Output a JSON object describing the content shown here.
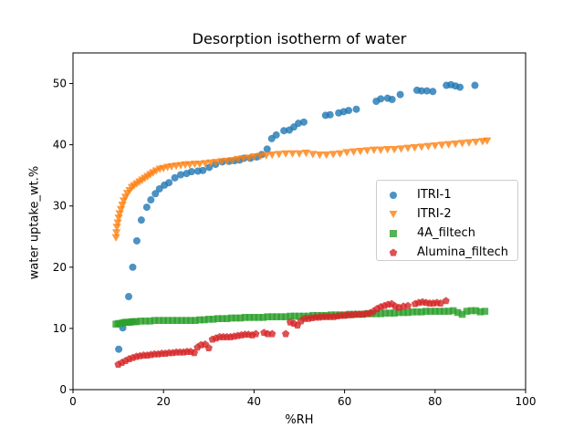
{
  "chart_data": {
    "type": "scatter",
    "title": "Desorption isotherm of water",
    "xlabel": "%RH",
    "ylabel": "water uptake_wt.%",
    "xlim": [
      0,
      100
    ],
    "ylim": [
      0,
      55
    ],
    "xticks": [
      "0",
      "20",
      "40",
      "60",
      "80",
      "100"
    ],
    "yticks": [
      "0",
      "10",
      "20",
      "30",
      "40",
      "50"
    ],
    "grid": false,
    "legend_position": "center-right",
    "series": [
      {
        "name": "ITRI-1",
        "color": "#1f77b4",
        "marker": "circle",
        "points": [
          [
            10.1,
            6.6
          ],
          [
            11,
            10.1
          ],
          [
            12.3,
            15.2
          ],
          [
            13.2,
            20
          ],
          [
            14.1,
            24.3
          ],
          [
            15.1,
            27.7
          ],
          [
            16.3,
            29.8
          ],
          [
            17.2,
            31
          ],
          [
            18.2,
            32
          ],
          [
            19.1,
            32.8
          ],
          [
            20.2,
            33.4
          ],
          [
            21.2,
            33.8
          ],
          [
            22.5,
            34.6
          ],
          [
            23.8,
            35.1
          ],
          [
            25.1,
            35.3
          ],
          [
            26.2,
            35.6
          ],
          [
            27.6,
            35.7
          ],
          [
            28.7,
            35.8
          ],
          [
            30.1,
            36.3
          ],
          [
            31.5,
            36.8
          ],
          [
            33,
            37.2
          ],
          [
            34.5,
            37.3
          ],
          [
            35.7,
            37.4
          ],
          [
            36.8,
            37.5
          ],
          [
            37.8,
            37.8
          ],
          [
            39.2,
            37.8
          ],
          [
            40.6,
            38
          ],
          [
            41.7,
            38.4
          ],
          [
            42.9,
            39.3
          ],
          [
            43.9,
            41
          ],
          [
            44.9,
            41.6
          ],
          [
            46.6,
            42.3
          ],
          [
            47.8,
            42.4
          ],
          [
            48.8,
            42.9
          ],
          [
            49.8,
            43.5
          ],
          [
            51,
            43.7
          ],
          [
            55.8,
            44.8
          ],
          [
            56.8,
            44.9
          ],
          [
            58.7,
            45.2
          ],
          [
            59.8,
            45.4
          ],
          [
            60.9,
            45.6
          ],
          [
            62.6,
            45.8
          ],
          [
            67,
            47.1
          ],
          [
            68,
            47.5
          ],
          [
            69.5,
            47.6
          ],
          [
            70.5,
            47.4
          ],
          [
            72.3,
            48.2
          ],
          [
            76,
            48.9
          ],
          [
            77,
            48.8
          ],
          [
            78.2,
            48.8
          ],
          [
            79.5,
            48.7
          ],
          [
            82.5,
            49.7
          ],
          [
            83.5,
            49.8
          ],
          [
            84.5,
            49.6
          ],
          [
            85.5,
            49.4
          ],
          [
            88.8,
            49.7
          ]
        ]
      },
      {
        "name": "ITRI-2",
        "color": "#ff7f0e",
        "marker": "triangle-down",
        "points": [
          [
            9.5,
            24.8
          ],
          [
            9.6,
            25.6
          ],
          [
            9.7,
            26.5
          ],
          [
            9.9,
            27.2
          ],
          [
            10.1,
            28
          ],
          [
            10.3,
            28.7
          ],
          [
            10.6,
            29.4
          ],
          [
            10.9,
            30.1
          ],
          [
            11.2,
            30.8
          ],
          [
            11.6,
            31.4
          ],
          [
            12,
            32
          ],
          [
            12.5,
            32.5
          ],
          [
            13,
            33
          ],
          [
            13.5,
            33.3
          ],
          [
            14.1,
            33.6
          ],
          [
            14.7,
            33.9
          ],
          [
            15.3,
            34.2
          ],
          [
            15.9,
            34.5
          ],
          [
            16.5,
            34.8
          ],
          [
            17.1,
            35.1
          ],
          [
            17.7,
            35.4
          ],
          [
            18.4,
            35.7
          ],
          [
            19.2,
            36
          ],
          [
            20,
            36.1
          ],
          [
            20.9,
            36.3
          ],
          [
            21.8,
            36.4
          ],
          [
            22.8,
            36.5
          ],
          [
            23.8,
            36.6
          ],
          [
            24.8,
            36.7
          ],
          [
            25.8,
            36.7
          ],
          [
            26.9,
            36.8
          ],
          [
            28,
            36.8
          ],
          [
            29.2,
            36.9
          ],
          [
            30.4,
            37
          ],
          [
            31.6,
            37.1
          ],
          [
            32.8,
            37.2
          ],
          [
            34,
            37.3
          ],
          [
            35.2,
            37.4
          ],
          [
            36.4,
            37.6
          ],
          [
            37.6,
            37.7
          ],
          [
            38.8,
            37.8
          ],
          [
            40,
            38
          ],
          [
            41.4,
            38.1
          ],
          [
            42.7,
            38.2
          ],
          [
            44,
            38.3
          ],
          [
            45.5,
            38.4
          ],
          [
            47,
            38.5
          ],
          [
            48.5,
            38.5
          ],
          [
            50,
            38.5
          ],
          [
            51.5,
            38.6
          ],
          [
            53,
            38.4
          ],
          [
            54.5,
            38.3
          ],
          [
            56,
            38.3
          ],
          [
            57.5,
            38.4
          ],
          [
            59,
            38.5
          ],
          [
            60.5,
            38.7
          ],
          [
            62,
            38.8
          ],
          [
            63.5,
            38.9
          ],
          [
            65,
            39
          ],
          [
            66.5,
            39.1
          ],
          [
            68,
            39.1
          ],
          [
            69.5,
            39.2
          ],
          [
            71,
            39.2
          ],
          [
            72.5,
            39.3
          ],
          [
            74,
            39.4
          ],
          [
            75.5,
            39.5
          ],
          [
            77,
            39.6
          ],
          [
            78.5,
            39.7
          ],
          [
            80,
            39.8
          ],
          [
            81.5,
            39.9
          ],
          [
            83,
            40
          ],
          [
            84.5,
            40.1
          ],
          [
            86,
            40.2
          ],
          [
            87.5,
            40.3
          ],
          [
            89,
            40.4
          ],
          [
            90.5,
            40.5
          ],
          [
            91.5,
            40.6
          ]
        ]
      },
      {
        "name": "4A_filtech",
        "color": "#2ca02c",
        "marker": "square",
        "points": [
          [
            9.5,
            10.7
          ],
          [
            10,
            10.8
          ],
          [
            10.5,
            10.8
          ],
          [
            11,
            10.9
          ],
          [
            11.5,
            11
          ],
          [
            12,
            11
          ],
          [
            12.5,
            11
          ],
          [
            13,
            11.1
          ],
          [
            13.5,
            11.1
          ],
          [
            14,
            11.1
          ],
          [
            15,
            11.2
          ],
          [
            16,
            11.2
          ],
          [
            17,
            11.2
          ],
          [
            18,
            11.3
          ],
          [
            19,
            11.3
          ],
          [
            20,
            11.3
          ],
          [
            21,
            11.3
          ],
          [
            22,
            11.3
          ],
          [
            23,
            11.3
          ],
          [
            24,
            11.3
          ],
          [
            25,
            11.3
          ],
          [
            26,
            11.3
          ],
          [
            27,
            11.3
          ],
          [
            28,
            11.4
          ],
          [
            29,
            11.4
          ],
          [
            30,
            11.5
          ],
          [
            31,
            11.5
          ],
          [
            32,
            11.6
          ],
          [
            33,
            11.6
          ],
          [
            34,
            11.6
          ],
          [
            35,
            11.7
          ],
          [
            36,
            11.7
          ],
          [
            37,
            11.7
          ],
          [
            38,
            11.8
          ],
          [
            39,
            11.8
          ],
          [
            40,
            11.8
          ],
          [
            41,
            11.8
          ],
          [
            42,
            11.8
          ],
          [
            43,
            11.9
          ],
          [
            44,
            11.9
          ],
          [
            45,
            11.9
          ],
          [
            46,
            11.9
          ],
          [
            47,
            11.9
          ],
          [
            48,
            12
          ],
          [
            49,
            12
          ],
          [
            50,
            12
          ],
          [
            51,
            12
          ],
          [
            52,
            12
          ],
          [
            53,
            12.1
          ],
          [
            54,
            12.1
          ],
          [
            55,
            12.1
          ],
          [
            56,
            12.1
          ],
          [
            57,
            12.2
          ],
          [
            58,
            12.2
          ],
          [
            59,
            12.2
          ],
          [
            60,
            12.2
          ],
          [
            61,
            12.3
          ],
          [
            62,
            12.3
          ],
          [
            63,
            12.3
          ],
          [
            64,
            12.3
          ],
          [
            65,
            12.4
          ],
          [
            66,
            12.4
          ],
          [
            67,
            12.4
          ],
          [
            68,
            12.4
          ],
          [
            69,
            12.5
          ],
          [
            70,
            12.5
          ],
          [
            71,
            12.5
          ],
          [
            72,
            12.6
          ],
          [
            73,
            12.6
          ],
          [
            74,
            12.6
          ],
          [
            75,
            12.7
          ],
          [
            76,
            12.7
          ],
          [
            77,
            12.7
          ],
          [
            78,
            12.8
          ],
          [
            79,
            12.8
          ],
          [
            80,
            12.8
          ],
          [
            81,
            12.8
          ],
          [
            82,
            12.8
          ],
          [
            83,
            12.8
          ],
          [
            84,
            12.9
          ],
          [
            85,
            12.6
          ],
          [
            86,
            12.3
          ],
          [
            87,
            12.8
          ],
          [
            88,
            12.9
          ],
          [
            89,
            12.9
          ],
          [
            90,
            12.7
          ],
          [
            91,
            12.8
          ]
        ]
      },
      {
        "name": "Alumina_filtech",
        "color": "#d62728",
        "marker": "pentagon",
        "points": [
          [
            10,
            4.1
          ],
          [
            10.8,
            4.4
          ],
          [
            11.6,
            4.7
          ],
          [
            12.4,
            5
          ],
          [
            13.2,
            5.2
          ],
          [
            14,
            5.4
          ],
          [
            14.8,
            5.5
          ],
          [
            15.6,
            5.6
          ],
          [
            16.4,
            5.6
          ],
          [
            17.2,
            5.7
          ],
          [
            18,
            5.8
          ],
          [
            18.8,
            5.8
          ],
          [
            19.6,
            5.9
          ],
          [
            20.4,
            5.9
          ],
          [
            21.2,
            6
          ],
          [
            22,
            6
          ],
          [
            22.8,
            6.1
          ],
          [
            23.6,
            6.1
          ],
          [
            24.4,
            6.1
          ],
          [
            25.2,
            6.2
          ],
          [
            26,
            6.2
          ],
          [
            26.8,
            6
          ],
          [
            27.5,
            6.9
          ],
          [
            28.3,
            7.3
          ],
          [
            29.2,
            7.4
          ],
          [
            30,
            6.8
          ],
          [
            30.8,
            8.2
          ],
          [
            31.6,
            8.4
          ],
          [
            32.4,
            8.6
          ],
          [
            33.2,
            8.6
          ],
          [
            34,
            8.6
          ],
          [
            34.8,
            8.6
          ],
          [
            35.6,
            8.7
          ],
          [
            36.4,
            8.8
          ],
          [
            37.2,
            8.9
          ],
          [
            38,
            9
          ],
          [
            38.8,
            9
          ],
          [
            39.6,
            8.9
          ],
          [
            40.4,
            9.1
          ],
          [
            42.2,
            9.3
          ],
          [
            43,
            9.1
          ],
          [
            44,
            9.1
          ],
          [
            47,
            9.1
          ],
          [
            48,
            11
          ],
          [
            48.8,
            10.8
          ],
          [
            49.6,
            10.5
          ],
          [
            50.4,
            11.2
          ],
          [
            51.2,
            11.6
          ],
          [
            52,
            11.6
          ],
          [
            52.8,
            11.7
          ],
          [
            53.6,
            11.8
          ],
          [
            54.4,
            11.8
          ],
          [
            55.2,
            11.9
          ],
          [
            56,
            11.9
          ],
          [
            56.8,
            11.9
          ],
          [
            57.6,
            11.9
          ],
          [
            58.4,
            12
          ],
          [
            59.2,
            12.1
          ],
          [
            60,
            12.1
          ],
          [
            60.8,
            12.2
          ],
          [
            61.6,
            12.2
          ],
          [
            62.4,
            12.3
          ],
          [
            63.2,
            12.3
          ],
          [
            64,
            12.3
          ],
          [
            64.8,
            12.4
          ],
          [
            65.6,
            12.5
          ],
          [
            66.4,
            12.8
          ],
          [
            67.2,
            13.2
          ],
          [
            68,
            13.5
          ],
          [
            68.8,
            13.7
          ],
          [
            69.6,
            13.9
          ],
          [
            70.4,
            14
          ],
          [
            71.2,
            13.6
          ],
          [
            72,
            13.4
          ],
          [
            73,
            13.6
          ],
          [
            74,
            13.7
          ],
          [
            75.6,
            14
          ],
          [
            76.4,
            14.2
          ],
          [
            77.2,
            14.3
          ],
          [
            78,
            14.2
          ],
          [
            78.8,
            14.1
          ],
          [
            79.6,
            14.1
          ],
          [
            80.4,
            14.2
          ],
          [
            81.2,
            14.1
          ],
          [
            82.4,
            14.5
          ]
        ]
      }
    ]
  }
}
